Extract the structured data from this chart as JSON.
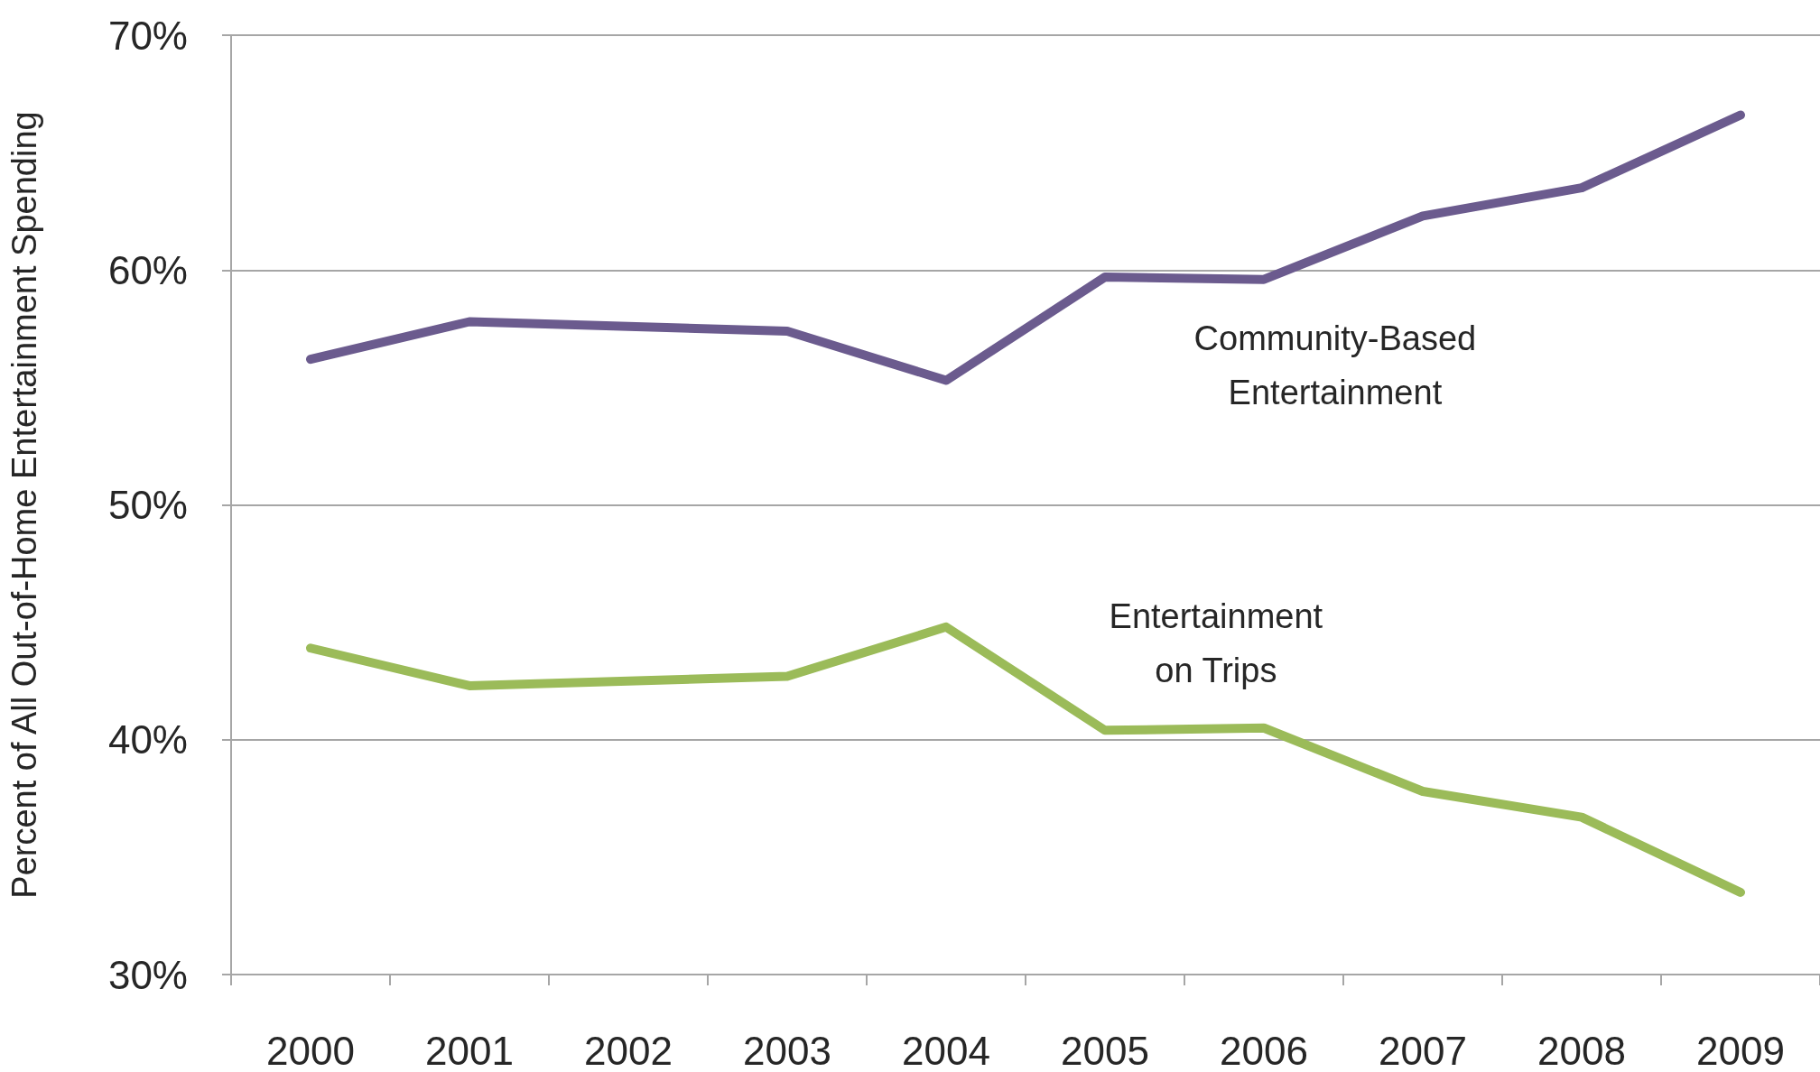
{
  "chart_data": {
    "type": "line",
    "ylabel": "Percent of All Out-of-Home Entertainment Spending",
    "categories": [
      "2000",
      "2001",
      "2002",
      "2003",
      "2004",
      "2005",
      "2006",
      "2007",
      "2008",
      "2009"
    ],
    "series": [
      {
        "name": "Community-Based Entertainment",
        "color": "#6b5b8e",
        "values": [
          56.2,
          57.8,
          57.6,
          57.4,
          55.3,
          59.7,
          59.6,
          62.3,
          63.5,
          66.6
        ]
      },
      {
        "name": "Entertainment on Trips",
        "color": "#9bbb59",
        "values": [
          43.9,
          42.3,
          42.5,
          42.7,
          44.8,
          40.4,
          40.5,
          37.8,
          36.7,
          33.5
        ]
      }
    ],
    "ylim": [
      30,
      70
    ],
    "yticks": [
      {
        "value": 30,
        "label": "30%"
      },
      {
        "value": 40,
        "label": "40%"
      },
      {
        "value": 50,
        "label": "50%"
      },
      {
        "value": 60,
        "label": "60%"
      },
      {
        "value": 70,
        "label": "70%"
      }
    ],
    "grid": "y",
    "marker": "none",
    "line_style": "solid"
  }
}
